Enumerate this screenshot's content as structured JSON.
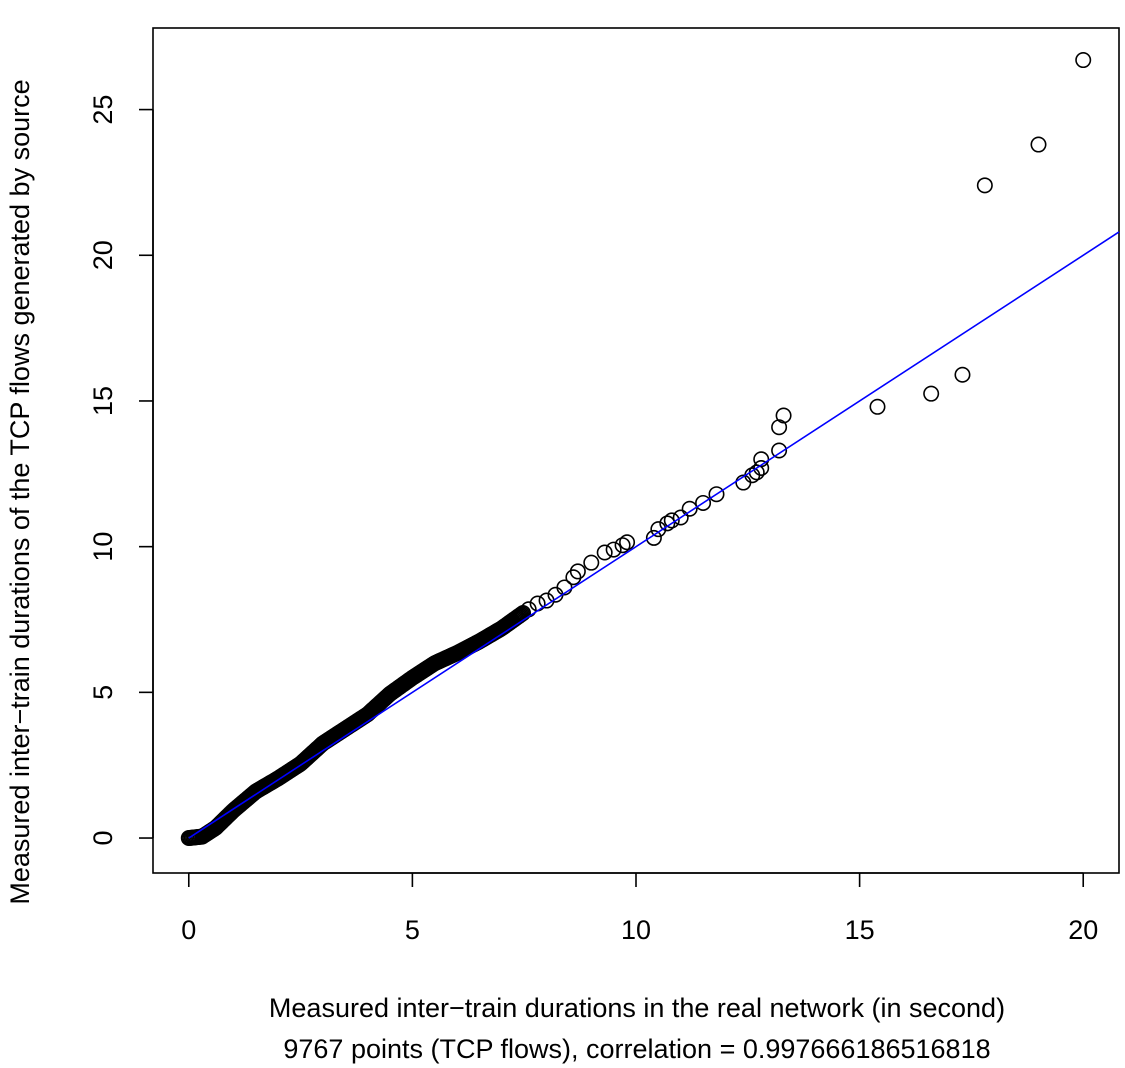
{
  "chart_data": {
    "type": "scatter",
    "title": "",
    "xlabel": "Measured inter−train durations in the real network (in second)",
    "xlabel_line2": "9767 points (TCP flows), correlation =  0.997666186516818",
    "ylabel": "Measured inter−train durations of the TCP flows generated by source",
    "xlim": [
      -0.8,
      20.8
    ],
    "ylim": [
      -1.2,
      27.8
    ],
    "x_ticks": [
      0,
      5,
      10,
      15,
      20
    ],
    "y_ticks": [
      0,
      5,
      10,
      15,
      20,
      25
    ],
    "grid": false,
    "marker": "open-circle",
    "point_color": "#000000",
    "fit_line": {
      "color": "#0000ff",
      "x": [
        0,
        20.8
      ],
      "y": [
        0,
        20.8
      ]
    },
    "dense_segments": [
      [
        [
          0,
          0
        ],
        [
          0.3,
          0.05
        ],
        [
          0.6,
          0.35
        ],
        [
          1.0,
          0.95
        ],
        [
          1.5,
          1.6
        ],
        [
          2.0,
          2.05
        ],
        [
          2.5,
          2.55
        ],
        [
          3.0,
          3.25
        ],
        [
          3.5,
          3.75
        ],
        [
          4.0,
          4.25
        ],
        [
          4.5,
          4.95
        ],
        [
          5.0,
          5.5
        ],
        [
          5.5,
          6.0
        ],
        [
          6.0,
          6.35
        ],
        [
          6.5,
          6.75
        ],
        [
          7.0,
          7.2
        ],
        [
          7.5,
          7.75
        ]
      ]
    ],
    "series": [
      {
        "x": [
          7.6,
          7.8,
          8.0,
          8.2,
          8.4,
          8.6,
          8.7,
          9.0,
          9.3,
          9.5,
          9.7,
          9.8,
          10.4,
          10.5,
          10.7,
          10.8,
          11.0,
          11.2,
          11.5,
          11.8,
          12.4,
          12.6,
          12.7,
          12.8,
          12.8,
          13.2,
          13.2,
          13.3,
          15.4,
          16.6,
          17.3,
          17.8,
          19.0,
          20.0
        ],
        "y": [
          7.85,
          8.05,
          8.15,
          8.35,
          8.6,
          8.95,
          9.15,
          9.45,
          9.8,
          9.9,
          10.05,
          10.15,
          10.3,
          10.6,
          10.8,
          10.9,
          11.0,
          11.3,
          11.5,
          11.8,
          12.2,
          12.45,
          12.55,
          12.7,
          13.0,
          13.3,
          14.1,
          14.5,
          14.8,
          15.25,
          15.9,
          22.4,
          23.8,
          26.7
        ]
      }
    ]
  }
}
